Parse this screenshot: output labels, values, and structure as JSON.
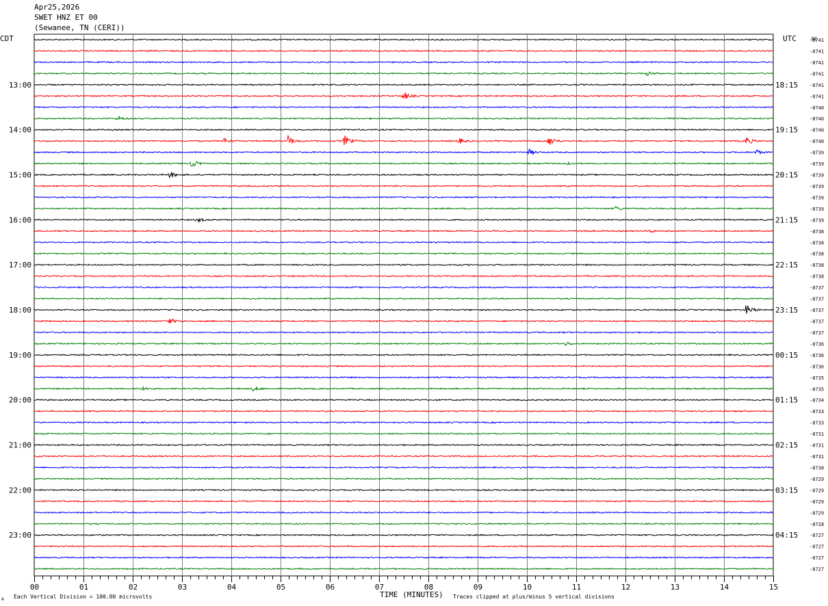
{
  "header": {
    "date": "Apr25,2026",
    "station": "SWET HNZ ET 00",
    "location": "(Sewanee, TN (CERI))"
  },
  "labels": {
    "left_tz": "CDT",
    "right_tz": "UTC",
    "dc": "DC",
    "xlabel": "TIME (MINUTES)",
    "scale_note": "Each Vertical Division =  100.00 microvolts",
    "clip_note": "Traces clipped at plus/minus 5 vertical divisions",
    "corner_mark": "A"
  },
  "chart_data": {
    "type": "line",
    "title": "SWET HNZ ET 00",
    "xlabel": "TIME (MINUTES)",
    "xlim": [
      0,
      15
    ],
    "x_ticks": [
      "00",
      "01",
      "02",
      "03",
      "04",
      "05",
      "06",
      "07",
      "08",
      "09",
      "10",
      "11",
      "12",
      "13",
      "14",
      "15"
    ],
    "trace_colors": [
      "#000000",
      "#ff0000",
      "#0000ff",
      "#008000"
    ],
    "left_hour_labels": [
      "13:00",
      "14:00",
      "15:00",
      "16:00",
      "17:00",
      "18:00",
      "19:00",
      "20:00",
      "21:00",
      "22:00",
      "23:00"
    ],
    "right_hour_labels": [
      "18:15",
      "19:15",
      "20:15",
      "21:15",
      "22:15",
      "23:15",
      "00:15",
      "01:15",
      "02:15",
      "03:15",
      "04:15"
    ],
    "dc_offsets": [
      "-8741",
      "-8741",
      "-8741",
      "-8741",
      "-8741",
      "-8741",
      "-8740",
      "-8740",
      "-8740",
      "-8740",
      "-8739",
      "-8739",
      "-8739",
      "-8739",
      "-8739",
      "-8739",
      "-8739",
      "-8738",
      "-8738",
      "-8738",
      "-8738",
      "-8738",
      "-8737",
      "-8737",
      "-8737",
      "-8737",
      "-8737",
      "-8736",
      "-8736",
      "-8736",
      "-8735",
      "-8735",
      "-8734",
      "-8733",
      "-8733",
      "-8731",
      "-8731",
      "-8731",
      "-8730",
      "-8729",
      "-8729",
      "-8729",
      "-8729",
      "-8728",
      "-8727",
      "-8727",
      "-8727",
      "-8727"
    ],
    "events": [
      {
        "trace": 3,
        "minute": 12.45,
        "amp": 3
      },
      {
        "trace": 5,
        "minute": 7.5,
        "amp": 6
      },
      {
        "trace": 7,
        "minute": 1.7,
        "amp": 3
      },
      {
        "trace": 9,
        "minute": 3.85,
        "amp": 4
      },
      {
        "trace": 9,
        "minute": 5.15,
        "amp": 8
      },
      {
        "trace": 9,
        "minute": 6.3,
        "amp": 8
      },
      {
        "trace": 9,
        "minute": 8.6,
        "amp": 5
      },
      {
        "trace": 9,
        "minute": 10.45,
        "amp": 8
      },
      {
        "trace": 9,
        "minute": 14.45,
        "amp": 6
      },
      {
        "trace": 10,
        "minute": 10.05,
        "amp": 4
      },
      {
        "trace": 10,
        "minute": 14.65,
        "amp": 4
      },
      {
        "trace": 11,
        "minute": 3.2,
        "amp": 6
      },
      {
        "trace": 11,
        "minute": 10.8,
        "amp": 3
      },
      {
        "trace": 12,
        "minute": 2.75,
        "amp": 5
      },
      {
        "trace": 15,
        "minute": 11.8,
        "amp": 3
      },
      {
        "trace": 16,
        "minute": 3.3,
        "amp": 4
      },
      {
        "trace": 17,
        "minute": 11.1,
        "amp": 2
      },
      {
        "trace": 17,
        "minute": 12.5,
        "amp": 2
      },
      {
        "trace": 24,
        "minute": 14.45,
        "amp": 8
      },
      {
        "trace": 25,
        "minute": 2.75,
        "amp": 4
      },
      {
        "trace": 27,
        "minute": 10.8,
        "amp": 3
      },
      {
        "trace": 31,
        "minute": 2.2,
        "amp": 3
      },
      {
        "trace": 31,
        "minute": 4.45,
        "amp": 4
      }
    ]
  }
}
